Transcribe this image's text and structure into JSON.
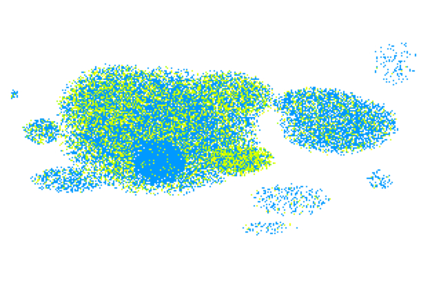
{
  "map": {
    "background_color": "#ffffff",
    "echo_colors": {
      "light": "#0099ff",
      "moderate": "#ccff00",
      "moderate_alt": "#ffff00",
      "heavy": "#99ff00"
    }
  }
}
